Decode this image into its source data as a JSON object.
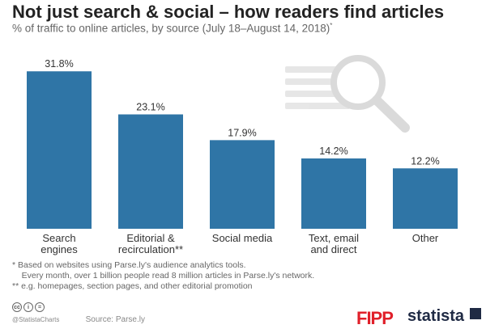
{
  "title": "Not just search & social – how readers find articles",
  "subtitle": "% of traffic to online articles, by source (July 18–August 14, 2018)",
  "subtitle_mark": "*",
  "chart_data": {
    "type": "bar",
    "categories": [
      [
        "Search",
        "engines"
      ],
      [
        "Editorial &",
        "recirculation**"
      ],
      [
        "Social media"
      ],
      [
        "Text, email",
        "and direct"
      ],
      [
        "Other"
      ]
    ],
    "values": [
      31.8,
      23.1,
      17.9,
      14.2,
      12.2
    ],
    "value_labels": [
      "31.8%",
      "23.1%",
      "17.9%",
      "14.2%",
      "12.2%"
    ],
    "ylim": [
      0,
      32
    ],
    "grid": false,
    "bar_color": "#2f75a6"
  },
  "notes": [
    "*  Based on websites using Parse.ly's audience analytics tools.",
    "    Every month, over 1 billion people read 8 million articles in Parse.ly's network.",
    "** e.g. homepages, section pages, and other editorial promotion"
  ],
  "footer": {
    "handle": "@StatistaCharts",
    "source": "Source: Parse.ly"
  },
  "logos": {
    "fipp": "FIPP",
    "statista": "statista"
  },
  "icons": [
    "cc-icon",
    "by-icon",
    "nd-icon",
    "magnifier-illustration"
  ],
  "colors": {
    "bar": "#2f75a6",
    "fipp": "#e0202a",
    "statista": "#1f2a44"
  }
}
